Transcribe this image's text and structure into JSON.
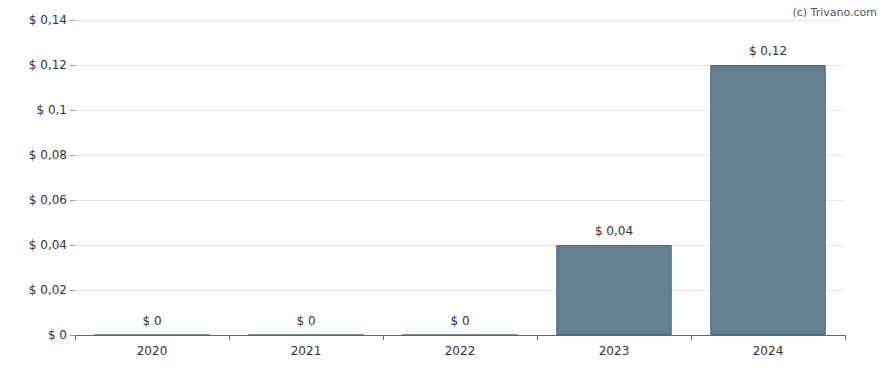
{
  "chart_data": {
    "type": "bar",
    "annotation": "(c) Trivano.com",
    "categories": [
      "2020",
      "2021",
      "2022",
      "2023",
      "2024"
    ],
    "values": [
      0,
      0,
      0,
      0.04,
      0.12
    ],
    "value_labels": [
      "$ 0",
      "$ 0",
      "$ 0",
      "$ 0,04",
      "$ 0,12"
    ],
    "data_labels": true,
    "color": "#647f91",
    "ylim": [
      0,
      0.14
    ],
    "yticks": [
      {
        "value": 0,
        "label": "$ 0"
      },
      {
        "value": 0.02,
        "label": "$ 0,02"
      },
      {
        "value": 0.04,
        "label": "$ 0,04"
      },
      {
        "value": 0.06,
        "label": "$ 0,06"
      },
      {
        "value": 0.08,
        "label": "$ 0,08"
      },
      {
        "value": 0.1,
        "label": "$ 0,1"
      },
      {
        "value": 0.12,
        "label": "$ 0,12"
      },
      {
        "value": 0.14,
        "label": "$ 0,14"
      }
    ],
    "grid": true
  }
}
